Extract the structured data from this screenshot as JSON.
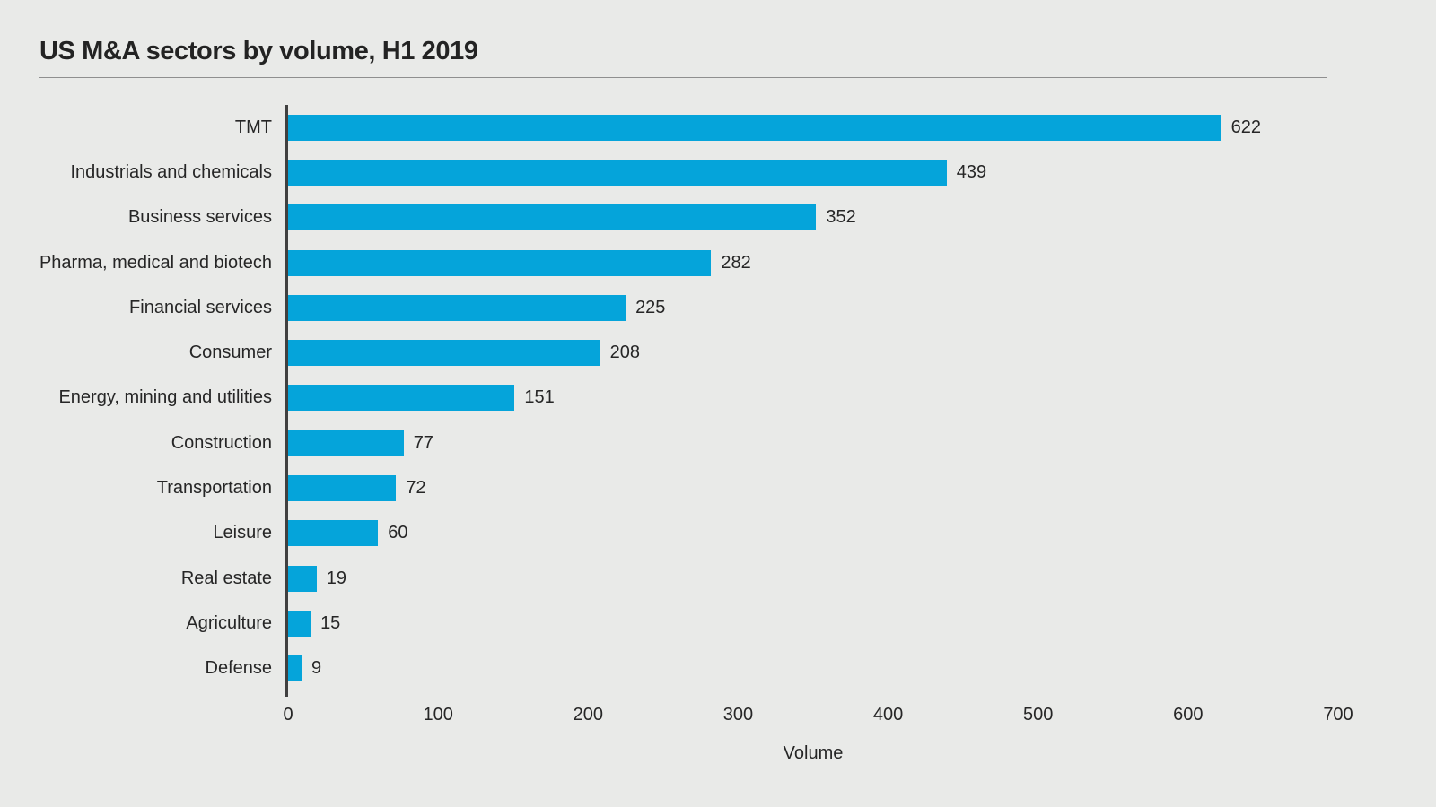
{
  "chart_data": {
    "type": "bar",
    "orientation": "horizontal",
    "title": "US M&A sectors by volume, H1 2019",
    "xlabel": "Volume",
    "categories": [
      "TMT",
      "Industrials and chemicals",
      "Business services",
      "Pharma, medical and biotech",
      "Financial services",
      "Consumer",
      "Energy, mining and utilities",
      "Construction",
      "Transportation",
      "Leisure",
      "Real estate",
      "Agriculture",
      "Defense"
    ],
    "values": [
      622,
      439,
      352,
      282,
      225,
      208,
      151,
      77,
      72,
      60,
      19,
      15,
      9
    ],
    "xlim": [
      0,
      700
    ],
    "xticks": [
      0,
      100,
      200,
      300,
      400,
      500,
      600,
      700
    ],
    "grid": false,
    "legend": "none",
    "bar_color": "#05a4da",
    "background_color": "#e9eae8",
    "text_color": "#262626",
    "axis_line_color": "#404040"
  }
}
